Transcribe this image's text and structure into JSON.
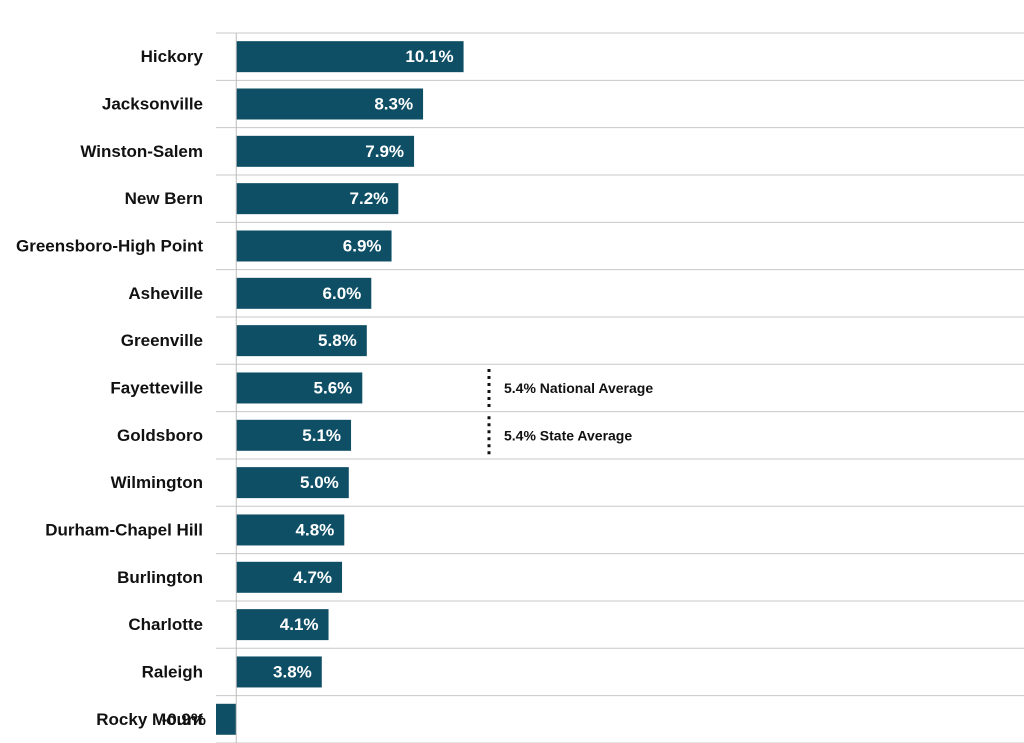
{
  "chart_data": {
    "type": "bar",
    "orientation": "horizontal",
    "categories": [
      "Hickory",
      "Jacksonville",
      "Winston-Salem",
      "New Bern",
      "Greensboro-High Point",
      "Asheville",
      "Greenville",
      "Fayetteville",
      "Goldsboro",
      "Wilmington",
      "Durham-Chapel Hill",
      "Burlington",
      "Charlotte",
      "Raleigh",
      "Rocky Mount"
    ],
    "values": [
      10.1,
      8.3,
      7.9,
      7.2,
      6.9,
      6.0,
      5.8,
      5.6,
      5.1,
      5.0,
      4.8,
      4.7,
      4.1,
      3.8,
      -0.9
    ],
    "value_labels": [
      "10.1%",
      "8.3%",
      "7.9%",
      "7.2%",
      "6.9%",
      "6.0%",
      "5.8%",
      "5.6%",
      "5.1%",
      "5.0%",
      "4.8%",
      "4.7%",
      "4.1%",
      "3.8%",
      "-0.9%"
    ],
    "xlim": [
      -0.9,
      35
    ],
    "grid": true,
    "bar_color": "#0f4f66",
    "value_label_color_inside": "#ffffff",
    "value_label_color_outside": "#111111",
    "reference_lines": [
      {
        "value": 5.4,
        "label": "5.4% National Average",
        "row": 7
      },
      {
        "value": 5.4,
        "label": "5.4% State Average",
        "row": 8
      }
    ]
  }
}
